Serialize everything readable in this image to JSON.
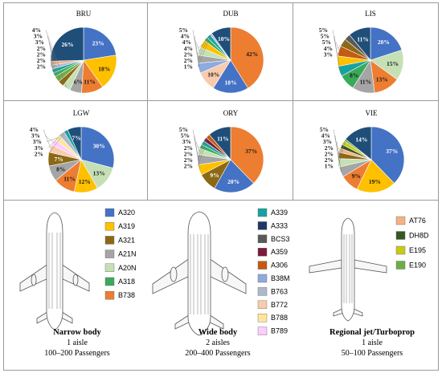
{
  "colors": {
    "A320": "#4472c4",
    "A319": "#ffc000",
    "A321": "#8b6914",
    "A21N": "#a5a5a5",
    "A20N": "#c5e0b4",
    "A318": "#3aaa5a",
    "B738": "#ed7d31",
    "A339": "#17a2a2",
    "A333": "#1f3864",
    "BCS3": "#595959",
    "A359": "#7b1c3a",
    "A306": "#c55a11",
    "B38M": "#8faadc",
    "B763": "#adb9ca",
    "B772": "#f8cbad",
    "B788": "#ffe699",
    "B789": "#ffccff",
    "AT76": "#f4b183",
    "DH8D": "#375623",
    "E195": "#c9c91a",
    "E190": "#70ad47"
  },
  "chart_data": [
    {
      "type": "pie",
      "title": "BRU",
      "slices": [
        {
          "label": "23%",
          "value": 23,
          "color": "#4472c4"
        },
        {
          "label": "18%",
          "value": 18,
          "color": "#ffc000"
        },
        {
          "label": "11%",
          "value": 11,
          "color": "#ed7d31"
        },
        {
          "label": "6%",
          "value": 6,
          "color": "#a5a5a5"
        },
        {
          "label": "4%",
          "value": 4,
          "color": "#c5e0b4"
        },
        {
          "label": "3%",
          "value": 3,
          "color": "#8b6914"
        },
        {
          "label": "3%",
          "value": 3,
          "color": "#70ad47"
        },
        {
          "label": "2%",
          "value": 2,
          "color": "#3aaa5a"
        },
        {
          "label": "2%",
          "value": 2,
          "color": "#17a2a2"
        },
        {
          "label": "2%",
          "value": 2,
          "color": "#adb9ca"
        },
        {
          "label": "2%",
          "value": 2,
          "color": "#f4b183"
        },
        {
          "label": "26%",
          "value": 26,
          "color": "#1f4e79"
        }
      ]
    },
    {
      "type": "pie",
      "title": "DUB",
      "slices": [
        {
          "label": "42%",
          "value": 42,
          "color": "#ed7d31"
        },
        {
          "label": "18%",
          "value": 18,
          "color": "#4472c4"
        },
        {
          "label": "10%",
          "value": 10,
          "color": "#f8cbad"
        },
        {
          "label": "5%",
          "value": 5,
          "color": "#8faadc"
        },
        {
          "label": "4%",
          "value": 4,
          "color": "#a5a5a5"
        },
        {
          "label": "4%",
          "value": 4,
          "color": "#c5e0b4"
        },
        {
          "label": "4%",
          "value": 4,
          "color": "#ffc000"
        },
        {
          "label": "2%",
          "value": 2,
          "color": "#3aaa5a"
        },
        {
          "label": "2%",
          "value": 2,
          "color": "#17a2a2"
        },
        {
          "label": "1%",
          "value": 1,
          "color": "#adb9ca"
        },
        {
          "label": "10%",
          "value": 10,
          "color": "#1f4e79"
        }
      ]
    },
    {
      "type": "pie",
      "title": "LIS",
      "slices": [
        {
          "label": "20%",
          "value": 20,
          "color": "#4472c4"
        },
        {
          "label": "15%",
          "value": 15,
          "color": "#c5e0b4"
        },
        {
          "label": "13%",
          "value": 13,
          "color": "#ed7d31"
        },
        {
          "label": "11%",
          "value": 11,
          "color": "#a5a5a5"
        },
        {
          "label": "8%",
          "value": 8,
          "color": "#3aaa5a"
        },
        {
          "label": "5%",
          "value": 5,
          "color": "#17a2a2"
        },
        {
          "label": "5%",
          "value": 5,
          "color": "#ffc000"
        },
        {
          "label": "5%",
          "value": 5,
          "color": "#c55a11"
        },
        {
          "label": "4%",
          "value": 4,
          "color": "#8b6914"
        },
        {
          "label": "3%",
          "value": 3,
          "color": "#595959"
        },
        {
          "label": "11%",
          "value": 11,
          "color": "#1f4e79"
        }
      ]
    },
    {
      "type": "pie",
      "title": "LGW",
      "slices": [
        {
          "label": "30%",
          "value": 30,
          "color": "#4472c4"
        },
        {
          "label": "13%",
          "value": 13,
          "color": "#c5e0b4"
        },
        {
          "label": "12%",
          "value": 12,
          "color": "#ffc000"
        },
        {
          "label": "11%",
          "value": 11,
          "color": "#ed7d31"
        },
        {
          "label": "8%",
          "value": 8,
          "color": "#a5a5a5"
        },
        {
          "label": "7%",
          "value": 7,
          "color": "#8b6914"
        },
        {
          "label": "4%",
          "value": 4,
          "color": "#f8cbad"
        },
        {
          "label": "3%",
          "value": 3,
          "color": "#ffccff"
        },
        {
          "label": "3%",
          "value": 3,
          "color": "#ffe699"
        },
        {
          "label": "3%",
          "value": 3,
          "color": "#adb9ca"
        },
        {
          "label": "2%",
          "value": 2,
          "color": "#17a2a2"
        },
        {
          "label": "7%",
          "value": 7,
          "color": "#1f4e79"
        }
      ]
    },
    {
      "type": "pie",
      "title": "ORY",
      "slices": [
        {
          "label": "37%",
          "value": 37,
          "color": "#ed7d31"
        },
        {
          "label": "20%",
          "value": 20,
          "color": "#4472c4"
        },
        {
          "label": "9%",
          "value": 9,
          "color": "#8b6914"
        },
        {
          "label": "5%",
          "value": 5,
          "color": "#ffc000"
        },
        {
          "label": "5%",
          "value": 5,
          "color": "#a5a5a5"
        },
        {
          "label": "3%",
          "value": 3,
          "color": "#c5e0b4"
        },
        {
          "label": "2%",
          "value": 2,
          "color": "#3aaa5a"
        },
        {
          "label": "2%",
          "value": 2,
          "color": "#17a2a2"
        },
        {
          "label": "2%",
          "value": 2,
          "color": "#7b1c3a"
        },
        {
          "label": "2%",
          "value": 2,
          "color": "#c55a11"
        },
        {
          "label": "11%",
          "value": 11,
          "color": "#1f4e79"
        }
      ]
    },
    {
      "type": "pie",
      "title": "VIE",
      "slices": [
        {
          "label": "37%",
          "value": 37,
          "color": "#4472c4"
        },
        {
          "label": "19%",
          "value": 19,
          "color": "#ffc000"
        },
        {
          "label": "9%",
          "value": 9,
          "color": "#ed7d31"
        },
        {
          "label": "5%",
          "value": 5,
          "color": "#a5a5a5"
        },
        {
          "label": "4%",
          "value": 4,
          "color": "#c5e0b4"
        },
        {
          "label": "3%",
          "value": 3,
          "color": "#8b6914"
        },
        {
          "label": "2%",
          "value": 2,
          "color": "#f4b183"
        },
        {
          "label": "2%",
          "value": 2,
          "color": "#375623"
        },
        {
          "label": "2%",
          "value": 2,
          "color": "#c9c91a"
        },
        {
          "label": "1%",
          "value": 1,
          "color": "#70ad47"
        },
        {
          "label": "14%",
          "value": 14,
          "color": "#1f4e79"
        }
      ]
    }
  ],
  "categories": [
    {
      "title": "Narrow body",
      "line1": "1 aisle",
      "line2": "100–200 Passengers",
      "legend": [
        "A320",
        "A319",
        "A321",
        "A21N",
        "A20N",
        "A318",
        "B738"
      ]
    },
    {
      "title": "Wide body",
      "line1": "2 aisles",
      "line2": "200–400 Passengers",
      "legend": [
        "A339",
        "A333",
        "BCS3",
        "A359",
        "A306",
        "B38M",
        "B763",
        "B772",
        "B788",
        "B789"
      ]
    },
    {
      "title": "Regional jet/Turboprop",
      "line1": "1 aisle",
      "line2": "50–100 Passengers",
      "legend": [
        "AT76",
        "DH8D",
        "E195",
        "E190"
      ]
    }
  ]
}
